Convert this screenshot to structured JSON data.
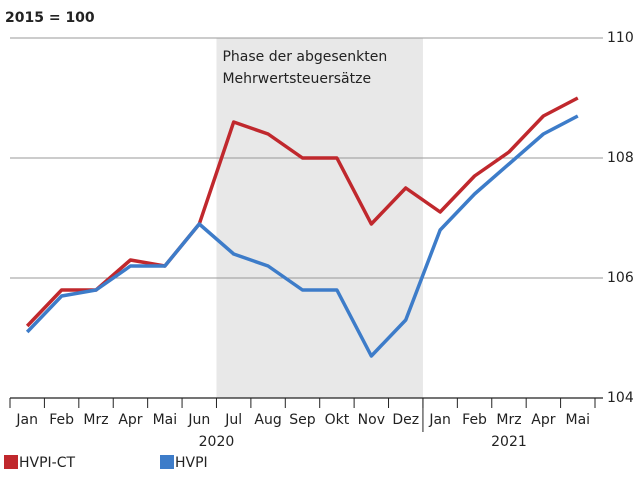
{
  "chart_data": {
    "type": "line",
    "ylabel": "2015 = 100",
    "categories": [
      "Jan",
      "Feb",
      "Mrz",
      "Apr",
      "Mai",
      "Jun",
      "Jul",
      "Aug",
      "Sep",
      "Okt",
      "Nov",
      "Dez",
      "Jan",
      "Feb",
      "Mrz",
      "Apr",
      "Mai"
    ],
    "x_groups": [
      {
        "label": "2020",
        "count": 12
      },
      {
        "label": "2021",
        "count": 5
      }
    ],
    "series": [
      {
        "name": "HVPI-CT",
        "color": "#c0282d",
        "values": [
          105.2,
          105.8,
          105.8,
          106.3,
          106.2,
          106.9,
          108.6,
          108.4,
          108.0,
          108.0,
          106.9,
          107.5,
          107.1,
          107.7,
          108.1,
          108.7,
          109.0
        ]
      },
      {
        "name": "HVPI",
        "color": "#3d7cc9",
        "values": [
          105.1,
          105.7,
          105.8,
          106.2,
          106.2,
          106.9,
          106.4,
          106.2,
          105.8,
          105.8,
          104.7,
          105.3,
          106.8,
          107.4,
          107.9,
          108.4,
          108.7
        ]
      }
    ],
    "highlight": {
      "label": [
        "Phase der abgesenkten",
        "Mehrwertsteuersätze"
      ],
      "from": 6,
      "to": 11,
      "color": "#e8e8e8"
    },
    "ylim": [
      104,
      110
    ],
    "yticks": [
      104,
      106,
      108,
      110
    ],
    "grid": true,
    "y_axis_side": "right"
  }
}
